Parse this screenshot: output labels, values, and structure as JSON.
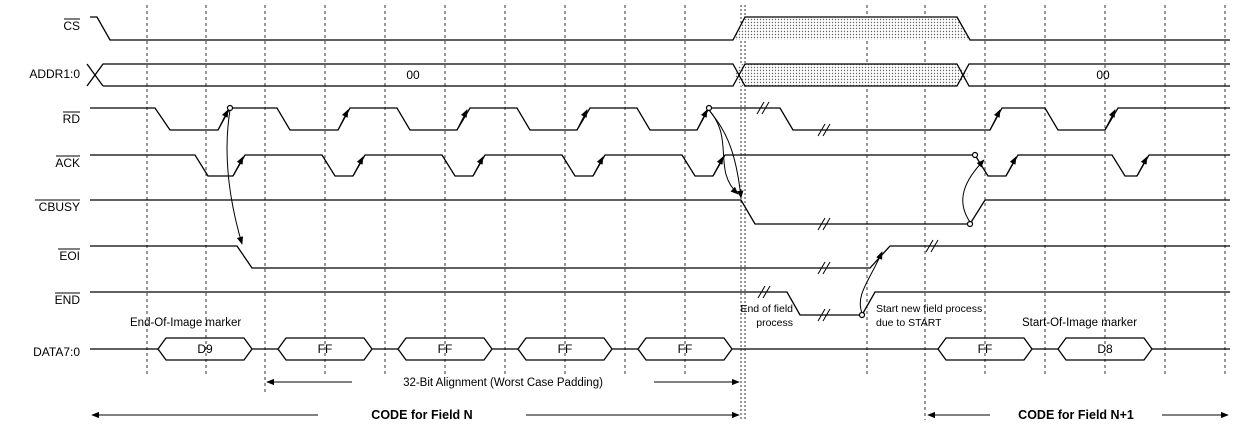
{
  "signals": [
    {
      "id": "cs",
      "label": "CS",
      "overline": true
    },
    {
      "id": "addr",
      "label": "ADDR1:0",
      "overline": false
    },
    {
      "id": "rd",
      "label": "RD",
      "overline": true
    },
    {
      "id": "ack",
      "label": "ACK",
      "overline": true
    },
    {
      "id": "cbusy",
      "label": "CBUSY",
      "overline": true
    },
    {
      "id": "eoi",
      "label": "EOI",
      "overline": true
    },
    {
      "id": "end",
      "label": "END",
      "overline": true
    },
    {
      "id": "data",
      "label": "DATA7:0",
      "overline": false
    }
  ],
  "addr_values": {
    "left": "00",
    "right": "00"
  },
  "data_values": [
    "D9",
    "FF",
    "FF",
    "FF",
    "FF",
    "FF",
    "D8"
  ],
  "annotations": {
    "eoi_marker": "End-Of-Image marker",
    "soi_marker": "Start-Of-Image marker",
    "end_field_1": "End of field",
    "end_field_2": "process",
    "start_new_1": "Start new field process",
    "start_new_2": "due to START",
    "alignment": "32-Bit Alignment (Worst Case Padding)",
    "code_n": "CODE for Field N",
    "code_n1": "CODE for Field N+1"
  },
  "colors": {
    "line": "#000000",
    "background": "#ffffff",
    "shade": "#d0d0d0"
  }
}
